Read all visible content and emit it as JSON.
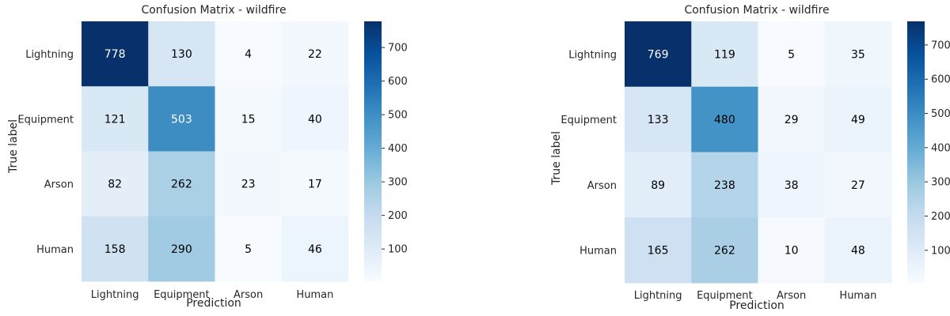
{
  "chart_data": [
    {
      "type": "heatmap",
      "title": "Confusion Matrix - wildfire",
      "xlabel": "Prediction",
      "ylabel": "True label",
      "x_categories": [
        "Lightning",
        "Equipment",
        "Arson",
        "Human"
      ],
      "y_categories": [
        "Lightning",
        "Equipment",
        "Arson",
        "Human"
      ],
      "values": [
        [
          778,
          130,
          4,
          22
        ],
        [
          121,
          503,
          15,
          40
        ],
        [
          82,
          262,
          23,
          17
        ],
        [
          158,
          290,
          5,
          46
        ]
      ],
      "colormap": "Blues",
      "colorbar": {
        "min": 4,
        "max": 778,
        "ticks": [
          100,
          200,
          300,
          400,
          500,
          600,
          700
        ]
      }
    },
    {
      "type": "heatmap",
      "title": "Confusion Matrix - wildfire",
      "xlabel": "Prediction",
      "ylabel": "True label",
      "x_categories": [
        "Lightning",
        "Equipment",
        "Arson",
        "Human"
      ],
      "y_categories": [
        "Lightning",
        "Equipment",
        "Arson",
        "Human"
      ],
      "values": [
        [
          769,
          119,
          5,
          35
        ],
        [
          133,
          480,
          29,
          49
        ],
        [
          89,
          238,
          38,
          27
        ],
        [
          165,
          262,
          10,
          48
        ]
      ],
      "colormap": "Blues",
      "colorbar": {
        "min": 5,
        "max": 769,
        "ticks": [
          100,
          200,
          300,
          400,
          500,
          600,
          700
        ]
      }
    }
  ]
}
